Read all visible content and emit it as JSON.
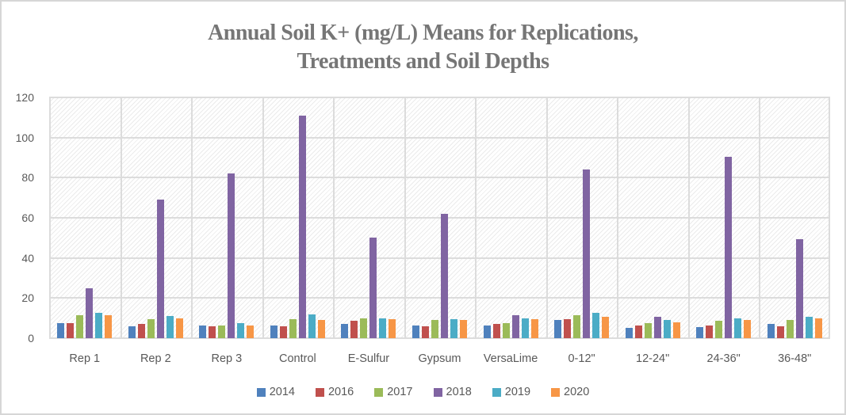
{
  "chart_data": {
    "type": "bar",
    "title": "Annual Soil K+ (mg/L) Means for Replications, Treatments and Soil Depths",
    "title_lines": [
      "Annual Soil K+ (mg/L) Means for Replications,",
      "Treatments and Soil Depths"
    ],
    "xlabel": "",
    "ylabel": "",
    "ylim": [
      0,
      120
    ],
    "yticks": [
      0,
      20,
      40,
      60,
      80,
      100,
      120
    ],
    "grid": true,
    "plot_background": "diagonal-hatch",
    "legend_position": "bottom",
    "categories": [
      "Rep 1",
      "Rep 2",
      "Rep 3",
      "Control",
      "E-Sulfur",
      "Gypsum",
      "VersaLime",
      "0-12\"",
      "12-24\"",
      "24-36\"",
      "36-48\""
    ],
    "series": [
      {
        "name": "2014",
        "color": "#4F81BD",
        "values": [
          7.5,
          6,
          6.5,
          6.5,
          7,
          6.5,
          6.5,
          9,
          5,
          5.5,
          7
        ]
      },
      {
        "name": "2016",
        "color": "#C0504D",
        "values": [
          7.5,
          7,
          6,
          6,
          8.5,
          6,
          7,
          9.5,
          6.5,
          6.5,
          6
        ]
      },
      {
        "name": "2017",
        "color": "#9BBB59",
        "values": [
          11.5,
          9.5,
          6.5,
          9.5,
          10,
          9,
          7.5,
          11.5,
          7.5,
          8.5,
          9
        ]
      },
      {
        "name": "2018",
        "color": "#8064A2",
        "values": [
          25,
          69,
          82,
          111,
          50,
          62,
          11.5,
          84,
          10.5,
          90.5,
          49.5
        ]
      },
      {
        "name": "2019",
        "color": "#4BACC6",
        "values": [
          12.5,
          11,
          7.5,
          12,
          10,
          9.5,
          10,
          12.5,
          9,
          10,
          10.5
        ]
      },
      {
        "name": "2020",
        "color": "#F79646",
        "values": [
          11.5,
          10,
          6.5,
          9,
          9.5,
          9,
          9.5,
          10.5,
          8,
          9,
          10
        ]
      }
    ]
  },
  "colors": {
    "title_text": "#767676",
    "axis_text": "#595959",
    "gridline": "#DCDCDC",
    "page_border": "#D6D6D6"
  }
}
